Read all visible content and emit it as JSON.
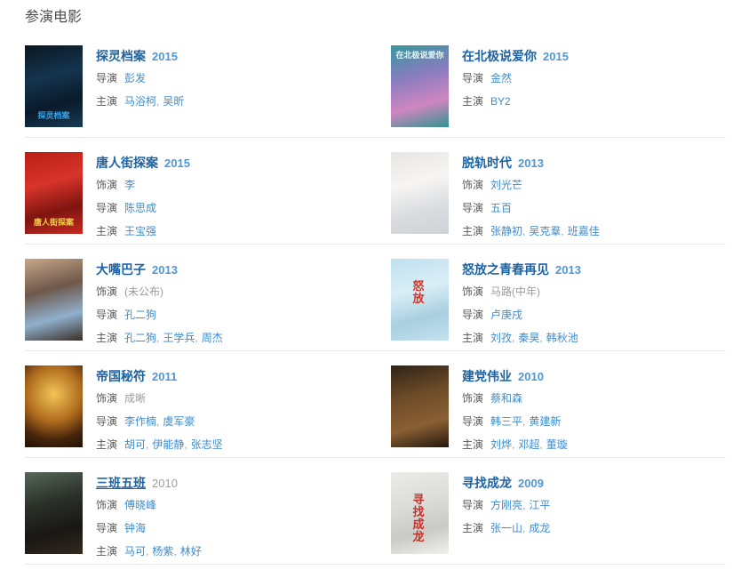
{
  "section": {
    "title": "参演电影"
  },
  "ui": {
    "separator": ","
  },
  "colors": {
    "title_link": "#1d63a3",
    "year": "#4e97d7",
    "year_muted": "#9c9c9c",
    "person_link": "#3e8ccd",
    "plain_text": "#9c9c9c",
    "credit_label": "#5b5b5b",
    "divider": "#e7e7e7",
    "heading": "#4d4d4d"
  },
  "movies": [
    {
      "title": "探灵档案",
      "year": "2015",
      "title_underline": false,
      "year_muted": false,
      "poster": {
        "gradient": [
          "#0b1722",
          "#14344f",
          "#0a1a2a",
          "#153b55"
        ],
        "radial": false,
        "text": "探灵档案",
        "text_color": "#39a0e0",
        "text_pos": "bottom"
      },
      "credits": [
        {
          "label": "导演",
          "people": [
            {
              "name": "彭发",
              "link": true
            }
          ]
        },
        {
          "label": "主演",
          "people": [
            {
              "name": "马浴柯",
              "link": true
            },
            {
              "name": "吴昕",
              "link": true
            }
          ]
        }
      ]
    },
    {
      "title": "在北极说爱你",
      "year": "2015",
      "title_underline": false,
      "year_muted": false,
      "poster": {
        "gradient": [
          "#37989b",
          "#8a7cc0",
          "#cf86c0",
          "#2f948f"
        ],
        "radial": false,
        "text": "在北极说爱你",
        "text_color": "#e8f8f5",
        "text_pos": "top"
      },
      "credits": [
        {
          "label": "导演",
          "people": [
            {
              "name": "金然",
              "link": true
            }
          ]
        },
        {
          "label": "主演",
          "people": [
            {
              "name": "BY2",
              "link": true
            }
          ]
        }
      ]
    },
    {
      "title": "唐人街探案",
      "year": "2015",
      "title_underline": false,
      "year_muted": false,
      "poster": {
        "gradient": [
          "#b81f16",
          "#d8342a",
          "#7e1410",
          "#c42b20"
        ],
        "radial": false,
        "text": "唐人街探案",
        "text_color": "#f5d24a",
        "text_pos": "bottom"
      },
      "credits": [
        {
          "label": "饰演",
          "people": [
            {
              "name": "李",
              "link": true
            }
          ]
        },
        {
          "label": "导演",
          "people": [
            {
              "name": "陈思成",
              "link": true
            }
          ]
        },
        {
          "label": "主演",
          "people": [
            {
              "name": "王宝强",
              "link": true
            }
          ]
        }
      ]
    },
    {
      "title": "脱轨时代",
      "year": "2013",
      "title_underline": false,
      "year_muted": false,
      "poster": {
        "gradient": [
          "#e8e6e2",
          "#f6f5f3",
          "#d9dcdf",
          "#cfd3d6"
        ],
        "radial": false,
        "text": "",
        "text_color": "",
        "text_pos": "bottom"
      },
      "credits": [
        {
          "label": "饰演",
          "people": [
            {
              "name": "刘光芒",
              "link": true
            }
          ]
        },
        {
          "label": "导演",
          "people": [
            {
              "name": "五百",
              "link": true
            }
          ]
        },
        {
          "label": "主演",
          "people": [
            {
              "name": "张静初",
              "link": true
            },
            {
              "name": "吴克羣",
              "link": true
            },
            {
              "name": "班嘉佳",
              "link": true
            }
          ]
        }
      ]
    },
    {
      "title": "大嘴巴子",
      "year": "2013",
      "title_underline": false,
      "year_muted": false,
      "poster": {
        "gradient": [
          "#c7a78a",
          "#6e584a",
          "#8fb0cc",
          "#3a2e26"
        ],
        "radial": false,
        "text": "",
        "text_color": "",
        "text_pos": "bottom"
      },
      "credits": [
        {
          "label": "饰演",
          "people": [
            {
              "name": "(未公布)",
              "link": false
            }
          ]
        },
        {
          "label": "导演",
          "people": [
            {
              "name": "孔二狗",
              "link": true
            }
          ]
        },
        {
          "label": "主演",
          "people": [
            {
              "name": "孔二狗",
              "link": true
            },
            {
              "name": "王学兵",
              "link": true
            },
            {
              "name": "周杰",
              "link": true
            }
          ]
        }
      ]
    },
    {
      "title": "怒放之青春再见",
      "year": "2013",
      "title_underline": false,
      "year_muted": false,
      "poster": {
        "gradient": [
          "#bfe0ef",
          "#d9eef7",
          "#a9cfe0",
          "#c3e2ee"
        ],
        "radial": false,
        "text": "怒放",
        "text_color": "#d93327",
        "text_pos": "center"
      },
      "credits": [
        {
          "label": "饰演",
          "people": [
            {
              "name": "马路(中年)",
              "link": false
            }
          ]
        },
        {
          "label": "导演",
          "people": [
            {
              "name": "卢庚戌",
              "link": true
            }
          ]
        },
        {
          "label": "主演",
          "people": [
            {
              "name": "刘孜",
              "link": true
            },
            {
              "name": "秦昊",
              "link": true
            },
            {
              "name": "韩秋池",
              "link": true
            }
          ]
        }
      ]
    },
    {
      "title": "帝国秘符",
      "year": "2011",
      "title_underline": false,
      "year_muted": false,
      "poster": {
        "gradient": [
          "#f2c558",
          "#b06c1d",
          "#47250c",
          "#1f1106"
        ],
        "radial": true,
        "text": "",
        "text_color": "",
        "text_pos": "bottom"
      },
      "credits": [
        {
          "label": "饰演",
          "people": [
            {
              "name": "成晰",
              "link": false
            }
          ]
        },
        {
          "label": "导演",
          "people": [
            {
              "name": "李作楠",
              "link": true
            },
            {
              "name": "虞军豪",
              "link": true
            }
          ]
        },
        {
          "label": "主演",
          "people": [
            {
              "name": "胡可",
              "link": true
            },
            {
              "name": "伊能静",
              "link": true
            },
            {
              "name": "张志坚",
              "link": true
            }
          ]
        }
      ]
    },
    {
      "title": "建党伟业",
      "year": "2010",
      "title_underline": false,
      "year_muted": false,
      "poster": {
        "gradient": [
          "#2f2317",
          "#6e4c28",
          "#8a5f33",
          "#241810"
        ],
        "radial": false,
        "text": "",
        "text_color": "",
        "text_pos": "bottom"
      },
      "credits": [
        {
          "label": "饰演",
          "people": [
            {
              "name": "蔡和森",
              "link": true
            }
          ]
        },
        {
          "label": "导演",
          "people": [
            {
              "name": "韩三平",
              "link": true
            },
            {
              "name": "黄建新",
              "link": true
            }
          ]
        },
        {
          "label": "主演",
          "people": [
            {
              "name": "刘烨",
              "link": true
            },
            {
              "name": "邓超",
              "link": true
            },
            {
              "name": "董璇",
              "link": true
            }
          ]
        }
      ]
    },
    {
      "title": "三班五班",
      "year": "2010",
      "title_underline": true,
      "year_muted": true,
      "poster": {
        "gradient": [
          "#55665a",
          "#2a3029",
          "#191613",
          "#33291f"
        ],
        "radial": false,
        "text": "",
        "text_color": "",
        "text_pos": "bottom"
      },
      "credits": [
        {
          "label": "饰演",
          "people": [
            {
              "name": "傅晓峰",
              "link": true
            }
          ]
        },
        {
          "label": "导演",
          "people": [
            {
              "name": "钟海",
              "link": true
            }
          ]
        },
        {
          "label": "主演",
          "people": [
            {
              "name": "马可",
              "link": true
            },
            {
              "name": "杨紫",
              "link": true
            },
            {
              "name": "林好",
              "link": true
            }
          ]
        }
      ]
    },
    {
      "title": "寻找成龙",
      "year": "2009",
      "title_underline": false,
      "year_muted": false,
      "poster": {
        "gradient": [
          "#ebebe8",
          "#dcdcd8",
          "#c9c9c5",
          "#f1f0ed"
        ],
        "radial": false,
        "text": "寻找成龙",
        "text_color": "#c2322a",
        "text_pos": "center"
      },
      "credits": [
        {
          "label": "导演",
          "people": [
            {
              "name": "方刚亮",
              "link": true
            },
            {
              "name": "江平",
              "link": true
            }
          ]
        },
        {
          "label": "主演",
          "people": [
            {
              "name": "张一山",
              "link": true
            },
            {
              "name": "成龙",
              "link": true
            }
          ]
        }
      ]
    }
  ]
}
